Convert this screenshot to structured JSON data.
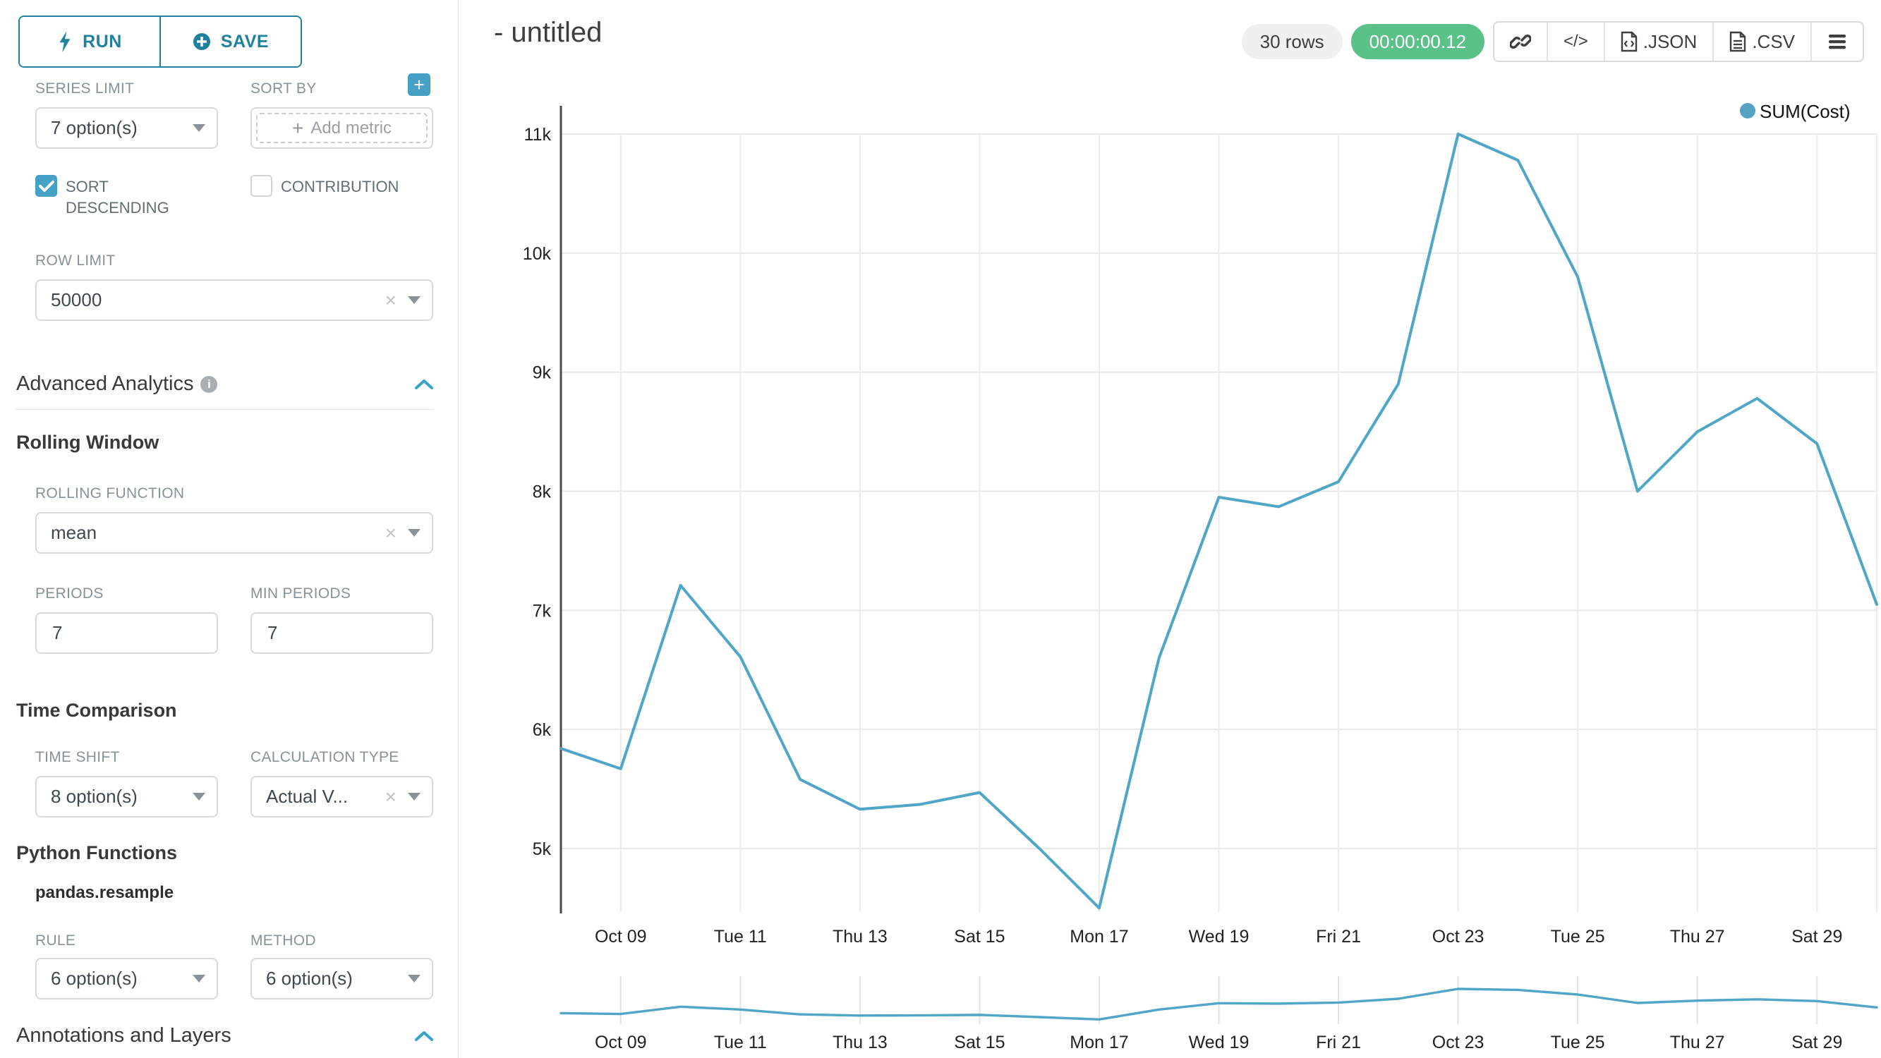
{
  "sidebar": {
    "run_label": "RUN",
    "save_label": "SAVE",
    "series_limit": {
      "label": "SERIES LIMIT",
      "value": "7 option(s)"
    },
    "sort_by": {
      "label": "SORT BY",
      "placeholder": "Add metric"
    },
    "sort_descending": {
      "label": "SORT DESCENDING",
      "checked": true
    },
    "contribution": {
      "label": "CONTRIBUTION",
      "checked": false
    },
    "row_limit": {
      "label": "ROW LIMIT",
      "value": "50000"
    },
    "advanced_analytics": {
      "title": "Advanced Analytics"
    },
    "rolling_window": {
      "title": "Rolling Window",
      "rolling_function": {
        "label": "ROLLING FUNCTION",
        "value": "mean"
      },
      "periods": {
        "label": "PERIODS",
        "value": "7"
      },
      "min_periods": {
        "label": "MIN PERIODS",
        "value": "7"
      }
    },
    "time_comparison": {
      "title": "Time Comparison",
      "time_shift": {
        "label": "TIME SHIFT",
        "value": "8 option(s)"
      },
      "calculation_type": {
        "label": "CALCULATION TYPE",
        "value": "Actual V..."
      }
    },
    "python_functions": {
      "title": "Python Functions",
      "subtitle": "pandas.resample",
      "rule": {
        "label": "RULE",
        "value": "6 option(s)"
      },
      "method": {
        "label": "METHOD",
        "value": "6 option(s)"
      }
    },
    "annotations": {
      "title": "Annotations and Layers"
    }
  },
  "header": {
    "title": "- untitled",
    "rows_badge": "30 rows",
    "timer_badge": "00:00:00.12",
    "code_button": "</>",
    "json_button": ".JSON",
    "csv_button": ".CSV"
  },
  "chart_data": {
    "type": "line",
    "title": "",
    "legend": [
      "SUM(Cost)"
    ],
    "legend_position": "top-right",
    "grid": true,
    "ylabel": "",
    "xlabel": "",
    "ylim": [
      4400,
      11200
    ],
    "y_ticks": [
      {
        "label": "11k",
        "value": 11000
      },
      {
        "label": "10k",
        "value": 10000
      },
      {
        "label": "9k",
        "value": 9000
      },
      {
        "label": "8k",
        "value": 8000
      },
      {
        "label": "7k",
        "value": 7000
      },
      {
        "label": "6k",
        "value": 6000
      },
      {
        "label": "5k",
        "value": 5000
      }
    ],
    "x_tick_labels": [
      "Oct 09",
      "Tue 11",
      "Thu 13",
      "Sat 15",
      "Mon 17",
      "Wed 19",
      "Fri 21",
      "Oct 23",
      "Tue 25",
      "Thu 27",
      "Sat 29"
    ],
    "x_tick_indices": [
      1,
      3,
      5,
      7,
      9,
      11,
      13,
      15,
      17,
      19,
      21
    ],
    "series": [
      {
        "name": "SUM(Cost)",
        "color": "#4fa6c7",
        "x": [
          "Oct 08",
          "Oct 09",
          "Oct 10",
          "Oct 11",
          "Oct 12",
          "Oct 13",
          "Oct 14",
          "Oct 15",
          "Oct 16",
          "Oct 17",
          "Oct 18",
          "Oct 19",
          "Oct 20",
          "Oct 21",
          "Oct 22",
          "Oct 23",
          "Oct 24",
          "Oct 25",
          "Oct 26",
          "Oct 27",
          "Oct 28",
          "Oct 29",
          "Oct 30"
        ],
        "values": [
          5840,
          5670,
          7210,
          6610,
          5580,
          5330,
          5370,
          5470,
          5000,
          4500,
          6600,
          7950,
          7870,
          8080,
          8900,
          11000,
          10780,
          9800,
          8000,
          8500,
          8780,
          8400,
          7050
        ]
      }
    ],
    "mini_chart": {
      "present": true,
      "x_tick_labels": [
        "Oct 09",
        "Tue 11",
        "Thu 13",
        "Sat 15",
        "Mon 17",
        "Wed 19",
        "Fri 21",
        "Oct 23",
        "Tue 25",
        "Thu 27",
        "Sat 29"
      ]
    }
  },
  "colors": {
    "accent": "#20a7c9",
    "accent_dark": "#20819e",
    "checkbox": "#45a1c5",
    "success": "#5ac189",
    "line": "#4fa6c7",
    "gridline": "#e8e8e8",
    "axis": "#4a4a4a"
  }
}
